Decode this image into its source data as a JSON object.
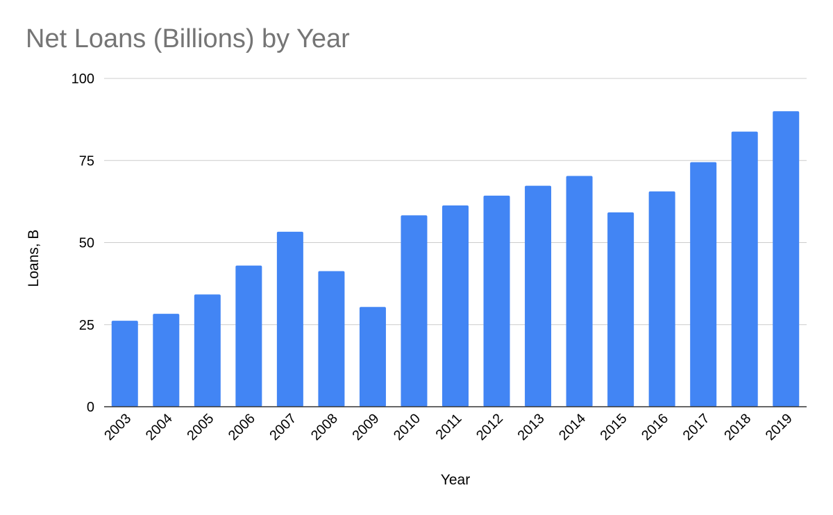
{
  "chart_data": {
    "type": "bar",
    "title": "Net Loans (Billions) by Year",
    "xlabel": "Year",
    "ylabel": "Loans, B",
    "categories": [
      "2003",
      "2004",
      "2005",
      "2006",
      "2007",
      "2008",
      "2009",
      "2010",
      "2011",
      "2012",
      "2013",
      "2014",
      "2015",
      "2016",
      "2017",
      "2018",
      "2019"
    ],
    "series": [
      {
        "values": [
          26.2,
          28.3,
          34.2,
          43.0,
          53.3,
          41.3,
          30.4,
          58.3,
          61.3,
          64.3,
          67.3,
          70.3,
          59.2,
          65.6,
          74.5,
          83.8,
          90.0
        ]
      }
    ],
    "ylim": [
      0,
      100
    ],
    "yticks": [
      0,
      25,
      50,
      75,
      100
    ],
    "grid": true,
    "legend": "none",
    "colors": {
      "bar": "#4285f4",
      "grid": "#cccccc",
      "baseline": "#333333",
      "title": "#757575"
    }
  }
}
